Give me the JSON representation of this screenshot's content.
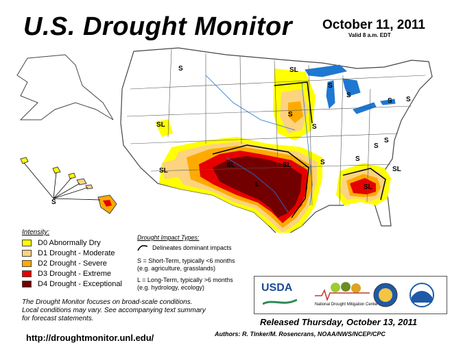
{
  "header": {
    "title": "U.S. Drought Monitor",
    "date": "October 11, 2011",
    "valid": "Valid 8 a.m. EDT"
  },
  "map": {
    "impact_labels": [
      "S",
      "SL",
      "SL",
      "S",
      "S",
      "S",
      "S",
      "SL",
      "S",
      "S",
      "S",
      "SL",
      "SL",
      "L",
      "SL",
      "SL",
      "S",
      "S",
      "S",
      "S"
    ],
    "colors": {
      "D0": "#ffff00",
      "D1": "#fcd37f",
      "D2": "#ffaa00",
      "D3": "#e60000",
      "D4": "#730000",
      "water": "#1e78d2",
      "land": "#ffffff"
    }
  },
  "legend": {
    "title": "Intensity:",
    "items": [
      {
        "label": "D0 Abnormally Dry",
        "color": "#ffff00"
      },
      {
        "label": "D1 Drought - Moderate",
        "color": "#fcd37f"
      },
      {
        "label": "D2 Drought - Severe",
        "color": "#ffaa00"
      },
      {
        "label": "D3 Drought - Extreme",
        "color": "#e60000"
      },
      {
        "label": "D4 Drought - Exceptional",
        "color": "#730000"
      }
    ]
  },
  "impacts": {
    "title": "Drought Impact Types:",
    "delineates": "Delineates dominant impacts",
    "short_term": "S = Short-Term, typically <6 months",
    "short_term_eg": "(e.g. agriculture, grasslands)",
    "long_term": "L = Long-Term, typically >6 months",
    "long_term_eg": "(e.g. hydrology, ecology)"
  },
  "logos": {
    "usda": "USDA",
    "ndmc_line1": "National",
    "ndmc_line2": "Drought Mitigation Center"
  },
  "footer": {
    "note_line1": "The Drought Monitor focuses on broad-scale conditions.",
    "note_line2": "Local conditions may vary. See accompanying text summary",
    "note_line3": "for forecast statements.",
    "released": "Released Thursday, October 13, 2011",
    "authors": "Authors: R. Tinker/M. Rosencrans, NOAA/NWS/NCEP/CPC",
    "url": "http://droughtmonitor.unl.edu/"
  }
}
